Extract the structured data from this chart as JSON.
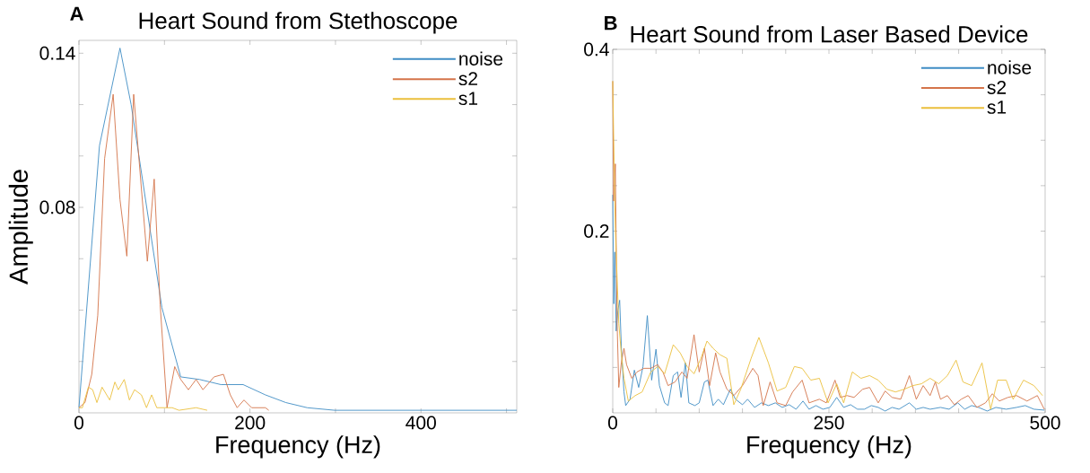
{
  "chart_data": [
    {
      "type": "line",
      "title": "Heart Sound from Stethoscope",
      "xlabel": "Frequency (Hz)",
      "ylabel": "Amplitude",
      "annotations": [
        "A"
      ],
      "xlim": [
        0,
        512
      ],
      "ylim": [
        0,
        0.145
      ],
      "xticks": [
        0,
        {
          "value": 100,
          "label": null
        },
        200,
        {
          "value": 300,
          "label": null
        },
        400,
        {
          "value": 500,
          "label": null
        }
      ],
      "yticks": [
        {
          "value": 0.02,
          "label": null
        },
        {
          "value": 0.04,
          "label": null
        },
        {
          "value": 0.06,
          "label": null
        },
        0.08,
        {
          "value": 0.1,
          "label": null
        },
        {
          "value": 0.12,
          "label": null
        },
        0.14
      ],
      "legend": "top right",
      "grid": false,
      "series": [
        {
          "name": "noise",
          "color": "#3f8dc4",
          "x": [
            0,
            24,
            48,
            61,
            97,
            119,
            141,
            166,
            192,
            218,
            242,
            267,
            299,
            512
          ],
          "values": [
            0.002,
            0.104,
            0.142,
            0.12,
            0.041,
            0.014,
            0.013,
            0.011,
            0.011,
            0.007,
            0.004,
            0.002,
            0.001,
            0.001
          ]
        },
        {
          "name": "s2",
          "color": "#d4744a",
          "x": [
            0,
            7,
            15,
            22,
            30,
            40,
            48,
            56,
            64,
            80,
            88,
            95,
            103,
            112,
            119,
            128,
            137,
            145,
            158,
            169,
            177,
            185,
            193,
            202,
            218,
            222
          ],
          "values": [
            0.002,
            0.004,
            0.015,
            0.038,
            0.099,
            0.124,
            0.083,
            0.061,
            0.124,
            0.059,
            0.091,
            0.042,
            0.002,
            0.018,
            0.013,
            0.009,
            0.013,
            0.009,
            0.014,
            0.015,
            0.007,
            0.002,
            0.005,
            0.002,
            0.002,
            0.001
          ]
        },
        {
          "name": "s1",
          "color": "#ebbf3c",
          "x": [
            0,
            4,
            11,
            16,
            21,
            27,
            36,
            42,
            46,
            53,
            59,
            65,
            73,
            79,
            85,
            91,
            109,
            117,
            137,
            150
          ],
          "values": [
            0.002,
            0.002,
            0.01,
            0.009,
            0.004,
            0.01,
            0.005,
            0.012,
            0.009,
            0.013,
            0.005,
            0.009,
            0.007,
            0.002,
            0.007,
            0.002,
            0.002,
            0.001,
            0.002,
            0.001
          ]
        }
      ]
    },
    {
      "type": "line",
      "title": "Heart Sound from Laser Based Device",
      "xlabel": "Frequency (Hz)",
      "annotations": [
        "B"
      ],
      "xlim": [
        0,
        500
      ],
      "ylim": [
        0,
        0.4
      ],
      "xticks": [
        0,
        {
          "value": 50,
          "label": null
        },
        {
          "value": 100,
          "label": null
        },
        {
          "value": 150,
          "label": null
        },
        {
          "value": 200,
          "label": null
        },
        250,
        {
          "value": 300,
          "label": null
        },
        {
          "value": 350,
          "label": null
        },
        {
          "value": 400,
          "label": null
        },
        {
          "value": 450,
          "label": null
        },
        500
      ],
      "yticks": [
        {
          "value": 0.05,
          "label": null
        },
        {
          "value": 0.1,
          "label": null
        },
        {
          "value": 0.15,
          "label": null
        },
        0.2,
        {
          "value": 0.25,
          "label": null
        },
        {
          "value": 0.3,
          "label": null
        },
        {
          "value": 0.35,
          "label": null
        },
        0.4
      ],
      "legend": "top right",
      "grid": false,
      "series": [
        {
          "name": "noise",
          "color": "#3f8dc4",
          "x": [
            0,
            1.2,
            2.4,
            4,
            6,
            8,
            10,
            13,
            15,
            20,
            25,
            30,
            35,
            40,
            45,
            50,
            54,
            60,
            64,
            70,
            75,
            79,
            84,
            88,
            95,
            100,
            106,
            110,
            116,
            122,
            128,
            136,
            142,
            150,
            156,
            164,
            172,
            180,
            188,
            196,
            204,
            212,
            220,
            227,
            235,
            243,
            251,
            259,
            267,
            275,
            283,
            291,
            299,
            307,
            315,
            323,
            331,
            343,
            351,
            359,
            367,
            379,
            389,
            399,
            407,
            415,
            423,
            433,
            443,
            455,
            467,
            477,
            487,
            499
          ],
          "values": [
            0.24,
            0.12,
            0.177,
            0.09,
            0.113,
            0.124,
            0.071,
            0.023,
            0.008,
            0.015,
            0.047,
            0.028,
            0.051,
            0.107,
            0.036,
            0.07,
            0.03,
            0.011,
            0.008,
            0.041,
            0.045,
            0.017,
            0.055,
            0.011,
            0.008,
            0.011,
            0.034,
            0.036,
            0.008,
            0.015,
            0.009,
            0.026,
            0.015,
            0.009,
            0.015,
            0.006,
            0.011,
            0.008,
            0.011,
            0.006,
            0.009,
            0.004,
            0.013,
            0.004,
            0.008,
            0.004,
            0.006,
            0.017,
            0.006,
            0.009,
            0.004,
            0.004,
            0.008,
            0.006,
            0.002,
            0.006,
            0.004,
            0.011,
            0.004,
            0.006,
            0.004,
            0.006,
            0.004,
            0.011,
            0.004,
            0.008,
            0.006,
            0.002,
            0.006,
            0.004,
            0.006,
            0.008,
            0.004,
            0.003
          ]
        },
        {
          "name": "s2",
          "color": "#d4744a",
          "x": [
            0,
            1,
            3,
            5,
            7,
            10,
            13,
            16,
            22,
            28,
            36,
            44,
            52,
            58,
            64,
            72,
            80,
            86,
            94,
            100,
            106,
            112,
            119,
            124,
            132,
            140,
            150,
            162,
            168,
            174,
            182,
            190,
            200,
            208,
            219,
            227,
            239,
            247,
            257,
            263,
            271,
            279,
            289,
            297,
            307,
            315,
            323,
            333,
            343,
            351,
            359,
            367,
            373,
            379,
            387,
            395,
            403,
            411,
            421,
            431,
            439,
            447,
            457,
            467,
            479,
            491,
            499
          ],
          "values": [
            0.365,
            0.233,
            0.274,
            0.1,
            0.028,
            0.056,
            0.071,
            0.053,
            0.038,
            0.045,
            0.049,
            0.049,
            0.053,
            0.045,
            0.03,
            0.034,
            0.045,
            0.038,
            0.086,
            0.045,
            0.071,
            0.03,
            0.066,
            0.045,
            0.026,
            0.019,
            0.03,
            0.049,
            0.041,
            0.008,
            0.034,
            0.011,
            0.008,
            0.023,
            0.036,
            0.011,
            0.015,
            0.011,
            0.036,
            0.017,
            0.019,
            0.017,
            0.026,
            0.028,
            0.011,
            0.024,
            0.017,
            0.015,
            0.041,
            0.015,
            0.03,
            0.019,
            0.034,
            0.015,
            0.019,
            0.009,
            0.015,
            0.019,
            0.006,
            0.011,
            0.021,
            0.013,
            0.017,
            0.019,
            0.013,
            0.019,
            0.004
          ]
        },
        {
          "name": "s1",
          "color": "#ebbf3c",
          "x": [
            0,
            1,
            3,
            5,
            7,
            10,
            13,
            18,
            26,
            34,
            44,
            52,
            60,
            70,
            78,
            86,
            94,
            102,
            109,
            116,
            124,
            132,
            140,
            148,
            160,
            169,
            180,
            190,
            200,
            210,
            219,
            229,
            239,
            249,
            259,
            267,
            277,
            287,
            297,
            307,
            317,
            327,
            337,
            347,
            357,
            367,
            377,
            387,
            397,
            405,
            415,
            427,
            437,
            445,
            455,
            463,
            475,
            487,
            497
          ],
          "values": [
            0.365,
            0.308,
            0.203,
            0.15,
            0.098,
            0.064,
            0.038,
            0.013,
            0.019,
            0.023,
            0.045,
            0.051,
            0.043,
            0.075,
            0.066,
            0.051,
            0.043,
            0.06,
            0.079,
            0.071,
            0.064,
            0.06,
            0.009,
            0.026,
            0.06,
            0.083,
            0.055,
            0.024,
            0.028,
            0.051,
            0.049,
            0.036,
            0.038,
            0.011,
            0.032,
            0.011,
            0.045,
            0.038,
            0.041,
            0.036,
            0.026,
            0.023,
            0.026,
            0.03,
            0.032,
            0.038,
            0.032,
            0.041,
            0.058,
            0.034,
            0.03,
            0.055,
            0.004,
            0.036,
            0.036,
            0.015,
            0.036,
            0.03,
            0.019
          ]
        }
      ]
    }
  ]
}
